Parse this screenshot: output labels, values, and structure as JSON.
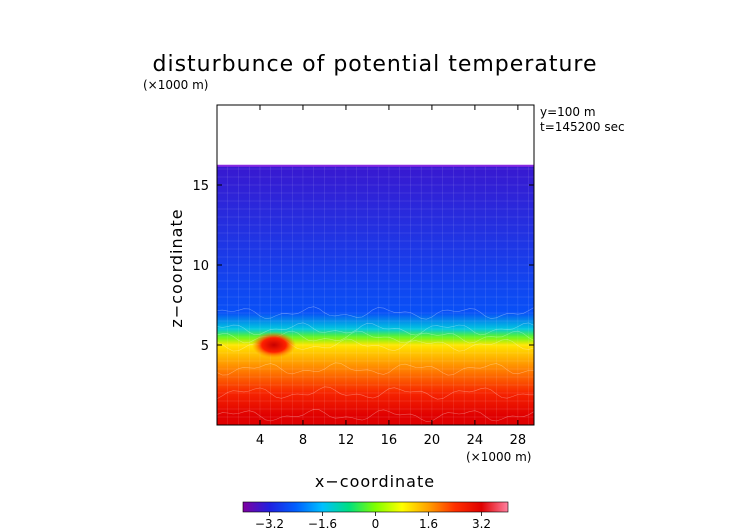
{
  "chart_data": {
    "type": "heatmap",
    "title": "disturbunce of potential temperature",
    "scale_note": "(×1000 m)",
    "annotations": [
      "y=100 m",
      "t=145200 sec"
    ],
    "xlabel": "x−coordinate",
    "ylabel": "z−coordinate",
    "x_scale_note": "(×1000 m)",
    "xlim": [
      0,
      29.5
    ],
    "ylim": [
      0,
      20
    ],
    "x_ticks": [
      4,
      8,
      12,
      16,
      20,
      24,
      28
    ],
    "x_tick_labels": [
      "4",
      "8",
      "12",
      "16",
      "20",
      "24",
      "28"
    ],
    "y_ticks": [
      5,
      10,
      15
    ],
    "y_tick_labels": [
      "5",
      "10",
      "15"
    ],
    "top_boundary_z": 16.2,
    "colorbar": {
      "range": [
        -4,
        4
      ],
      "ticks": [
        -3.2,
        -1.6,
        0,
        1.6,
        3.2
      ],
      "tick_labels": [
        "−3.2",
        "−1.6",
        "0",
        "1.6",
        "3.2"
      ],
      "colors": [
        "#8000a0",
        "#2020e0",
        "#0060ff",
        "#00c0ff",
        "#00e080",
        "#80ff00",
        "#ffff00",
        "#ffa000",
        "#ff3000",
        "#e00000",
        "#ff80a0"
      ]
    },
    "bands": [
      {
        "z_top": 16.2,
        "value": -3.4
      },
      {
        "z_top": 7.0,
        "value": -2.6
      },
      {
        "z_top": 6.0,
        "value": -1.4
      },
      {
        "z_top": 5.5,
        "value": -0.2
      },
      {
        "z_top": 5.0,
        "value": 1.0
      },
      {
        "z_top": 3.5,
        "value": 1.8
      },
      {
        "z_top": 2.0,
        "value": 2.6
      },
      {
        "z_top": 0.6,
        "value": 3.2
      }
    ],
    "anomalies": [
      {
        "x": 5.3,
        "z": 5.0,
        "value": 3.4
      }
    ]
  }
}
